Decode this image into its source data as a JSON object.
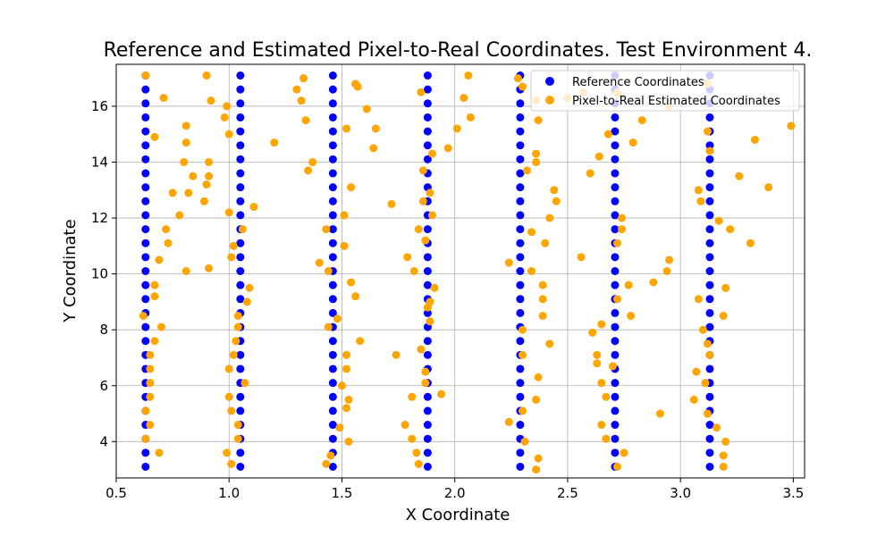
{
  "chart_data": {
    "type": "scatter",
    "title": "Reference and Estimated Pixel-to-Real Coordinates. Test Environment 4.",
    "xlabel": "X Coordinate",
    "ylabel": "Y Coordinate",
    "xlim": [
      0.5,
      3.55
    ],
    "ylim": [
      2.7,
      17.5
    ],
    "xticks": [
      "0.5",
      "1.0",
      "1.5",
      "2.0",
      "2.5",
      "3.0",
      "3.5"
    ],
    "yticks": [
      "4",
      "6",
      "8",
      "10",
      "12",
      "14",
      "16"
    ],
    "grid": true,
    "legend_position": "top-right",
    "series": [
      {
        "name": "Reference Coordinates",
        "color": "#0000ff",
        "x_columns": [
          0.63,
          1.05,
          1.46,
          1.88,
          2.29,
          2.71,
          3.13
        ],
        "y_start": 3.1,
        "y_end": 17.1,
        "y_step": 0.5
      },
      {
        "name": "Pixel-to-Real Estimated Coordinates",
        "color": "#ffa500",
        "points": [
          [
            0.63,
            17.1
          ],
          [
            0.71,
            16.3
          ],
          [
            0.67,
            14.9
          ],
          [
            0.75,
            12.9
          ],
          [
            0.78,
            12.1
          ],
          [
            0.72,
            11.6
          ],
          [
            0.73,
            11.1
          ],
          [
            0.69,
            10.5
          ],
          [
            0.67,
            9.6
          ],
          [
            0.67,
            9.2
          ],
          [
            0.62,
            8.5
          ],
          [
            0.7,
            8.1
          ],
          [
            0.67,
            7.6
          ],
          [
            0.65,
            7.1
          ],
          [
            0.65,
            6.6
          ],
          [
            0.65,
            6.1
          ],
          [
            0.65,
            5.6
          ],
          [
            0.63,
            5.1
          ],
          [
            0.65,
            4.6
          ],
          [
            0.63,
            4.1
          ],
          [
            0.69,
            3.6
          ],
          [
            0.9,
            17.1
          ],
          [
            0.92,
            16.2
          ],
          [
            0.81,
            15.3
          ],
          [
            0.81,
            14.7
          ],
          [
            0.8,
            14.0
          ],
          [
            0.84,
            13.5
          ],
          [
            0.82,
            12.9
          ],
          [
            0.91,
            14.0
          ],
          [
            0.91,
            13.5
          ],
          [
            0.9,
            13.2
          ],
          [
            0.89,
            12.6
          ],
          [
            0.81,
            10.1
          ],
          [
            0.91,
            10.2
          ],
          [
            0.99,
            16.0
          ],
          [
            0.98,
            15.6
          ],
          [
            1.0,
            15.0
          ],
          [
            1.2,
            14.7
          ],
          [
            1.0,
            12.2
          ],
          [
            1.11,
            12.4
          ],
          [
            1.06,
            11.6
          ],
          [
            1.02,
            11.0
          ],
          [
            1.01,
            10.6
          ],
          [
            1.09,
            9.5
          ],
          [
            1.08,
            9.0
          ],
          [
            1.04,
            8.5
          ],
          [
            1.04,
            8.1
          ],
          [
            1.03,
            7.6
          ],
          [
            1.02,
            7.1
          ],
          [
            1.0,
            6.6
          ],
          [
            1.07,
            6.1
          ],
          [
            1.0,
            5.6
          ],
          [
            1.01,
            5.1
          ],
          [
            1.04,
            4.6
          ],
          [
            1.04,
            4.1
          ],
          [
            0.99,
            3.6
          ],
          [
            1.01,
            3.2
          ],
          [
            1.3,
            16.6
          ],
          [
            1.33,
            17.0
          ],
          [
            1.32,
            16.2
          ],
          [
            1.34,
            15.5
          ],
          [
            1.37,
            14.0
          ],
          [
            1.35,
            13.7
          ],
          [
            1.43,
            11.6
          ],
          [
            1.4,
            10.4
          ],
          [
            1.44,
            10.1
          ],
          [
            1.44,
            8.1
          ],
          [
            1.48,
            8.4
          ],
          [
            1.43,
            3.2
          ],
          [
            1.45,
            3.5
          ],
          [
            1.56,
            16.8
          ],
          [
            1.57,
            16.7
          ],
          [
            1.61,
            15.9
          ],
          [
            1.52,
            15.2
          ],
          [
            1.65,
            15.2
          ],
          [
            1.64,
            14.5
          ],
          [
            1.54,
            13.1
          ],
          [
            1.51,
            12.1
          ],
          [
            1.72,
            12.5
          ],
          [
            1.51,
            11.0
          ],
          [
            1.54,
            9.7
          ],
          [
            1.56,
            9.2
          ],
          [
            1.58,
            7.6
          ],
          [
            1.52,
            7.1
          ],
          [
            1.52,
            6.6
          ],
          [
            1.5,
            6.0
          ],
          [
            1.53,
            5.5
          ],
          [
            1.52,
            5.2
          ],
          [
            1.49,
            4.5
          ],
          [
            1.53,
            4.0
          ],
          [
            1.74,
            7.1
          ],
          [
            2.06,
            17.1
          ],
          [
            1.85,
            16.5
          ],
          [
            2.04,
            16.3
          ],
          [
            2.07,
            15.6
          ],
          [
            2.01,
            15.2
          ],
          [
            1.97,
            14.5
          ],
          [
            1.9,
            14.3
          ],
          [
            1.86,
            13.7
          ],
          [
            1.89,
            12.9
          ],
          [
            1.86,
            12.6
          ],
          [
            1.9,
            12.1
          ],
          [
            1.84,
            11.6
          ],
          [
            1.87,
            11.2
          ],
          [
            1.79,
            10.6
          ],
          [
            1.82,
            10.1
          ],
          [
            1.91,
            9.5
          ],
          [
            1.89,
            9.0
          ],
          [
            1.88,
            8.8
          ],
          [
            1.89,
            8.3
          ],
          [
            1.85,
            7.3
          ],
          [
            1.87,
            6.5
          ],
          [
            1.87,
            6.1
          ],
          [
            1.94,
            5.7
          ],
          [
            1.81,
            5.6
          ],
          [
            1.78,
            4.6
          ],
          [
            1.81,
            4.1
          ],
          [
            1.83,
            3.6
          ],
          [
            1.84,
            3.2
          ],
          [
            2.28,
            17.0
          ],
          [
            2.3,
            16.7
          ],
          [
            2.36,
            16.2
          ],
          [
            2.37,
            15.5
          ],
          [
            2.36,
            14.3
          ],
          [
            2.36,
            14.0
          ],
          [
            2.32,
            13.7
          ],
          [
            2.44,
            13.0
          ],
          [
            2.45,
            12.6
          ],
          [
            2.42,
            12.0
          ],
          [
            2.34,
            11.5
          ],
          [
            2.4,
            11.1
          ],
          [
            2.24,
            10.4
          ],
          [
            2.34,
            10.1
          ],
          [
            2.39,
            9.6
          ],
          [
            2.39,
            9.1
          ],
          [
            2.39,
            8.5
          ],
          [
            2.3,
            8.0
          ],
          [
            2.42,
            7.5
          ],
          [
            2.3,
            7.1
          ],
          [
            2.37,
            6.3
          ],
          [
            2.36,
            5.5
          ],
          [
            2.3,
            5.1
          ],
          [
            2.31,
            4.0
          ],
          [
            2.37,
            3.4
          ],
          [
            2.36,
            3.0
          ],
          [
            2.24,
            4.7
          ],
          [
            2.57,
            16.5
          ],
          [
            2.5,
            16.3
          ],
          [
            2.6,
            13.6
          ],
          [
            2.64,
            14.2
          ],
          [
            2.68,
            15.0
          ],
          [
            2.72,
            16.5
          ],
          [
            2.73,
            16.4
          ],
          [
            2.79,
            14.7
          ],
          [
            2.83,
            15.5
          ],
          [
            2.56,
            10.6
          ],
          [
            2.74,
            12.0
          ],
          [
            2.74,
            11.6
          ],
          [
            2.72,
            11.1
          ],
          [
            2.77,
            9.6
          ],
          [
            2.72,
            9.1
          ],
          [
            2.78,
            8.5
          ],
          [
            2.65,
            8.2
          ],
          [
            2.61,
            7.9
          ],
          [
            2.63,
            7.1
          ],
          [
            2.63,
            6.8
          ],
          [
            2.7,
            6.7
          ],
          [
            2.65,
            6.1
          ],
          [
            2.67,
            5.6
          ],
          [
            2.65,
            4.6
          ],
          [
            2.67,
            4.1
          ],
          [
            2.75,
            3.6
          ],
          [
            2.72,
            3.1
          ],
          [
            2.95,
            16.0
          ],
          [
            3.12,
            16.8
          ],
          [
            3.12,
            15.1
          ],
          [
            3.13,
            14.4
          ],
          [
            3.33,
            14.8
          ],
          [
            3.49,
            15.3
          ],
          [
            3.26,
            13.5
          ],
          [
            3.39,
            13.1
          ],
          [
            3.08,
            13.0
          ],
          [
            3.09,
            12.6
          ],
          [
            3.17,
            11.9
          ],
          [
            3.22,
            11.6
          ],
          [
            3.31,
            11.1
          ],
          [
            2.95,
            10.5
          ],
          [
            2.94,
            10.1
          ],
          [
            2.88,
            9.7
          ],
          [
            3.2,
            9.5
          ],
          [
            3.08,
            9.1
          ],
          [
            3.19,
            8.5
          ],
          [
            3.1,
            8.0
          ],
          [
            3.12,
            7.5
          ],
          [
            3.13,
            7.1
          ],
          [
            3.07,
            6.5
          ],
          [
            3.11,
            6.1
          ],
          [
            3.06,
            5.5
          ],
          [
            3.12,
            5.0
          ],
          [
            2.91,
            5.0
          ],
          [
            3.16,
            4.5
          ],
          [
            3.2,
            4.0
          ],
          [
            3.19,
            3.5
          ],
          [
            3.19,
            3.1
          ]
        ]
      }
    ]
  }
}
